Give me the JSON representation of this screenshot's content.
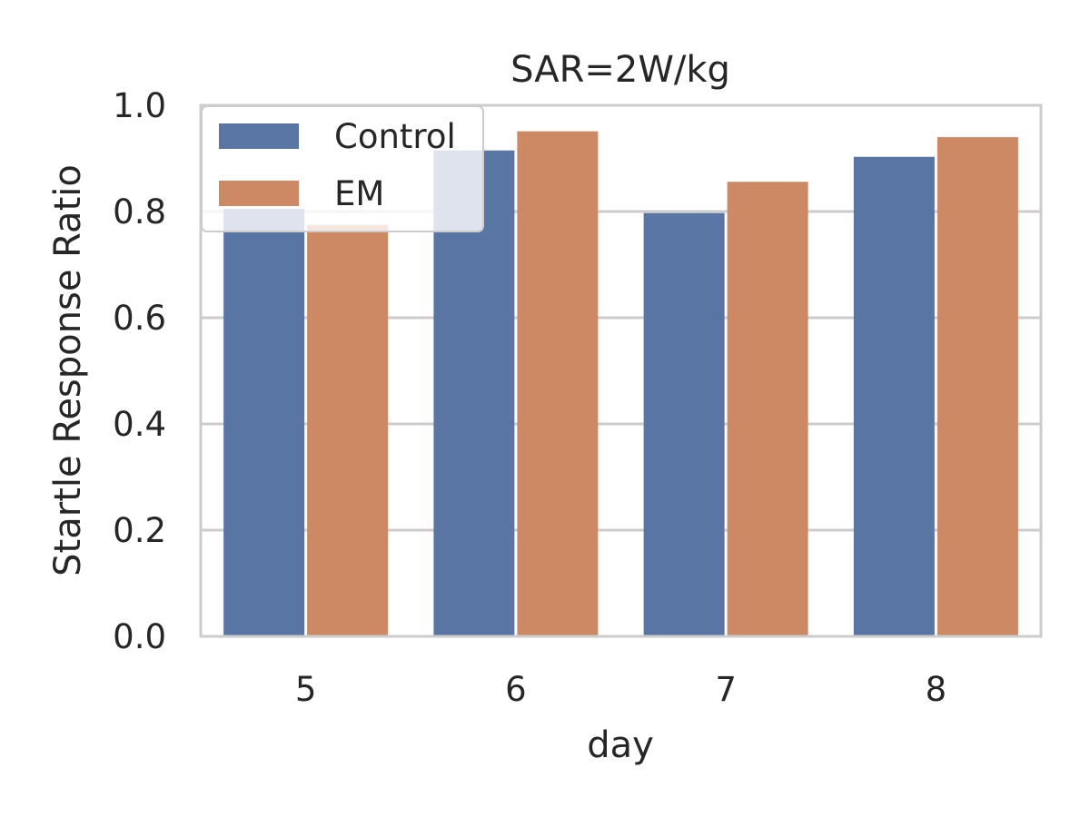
{
  "chart_data": {
    "type": "bar",
    "title": "SAR=2W/kg",
    "xlabel": "day",
    "ylabel": "Startle Response Ratio",
    "categories": [
      "5",
      "6",
      "7",
      "8"
    ],
    "series": [
      {
        "name": "Control",
        "values": [
          0.805,
          0.915,
          0.797,
          0.903
        ],
        "color": "#5975a4"
      },
      {
        "name": "EM",
        "values": [
          0.775,
          0.951,
          0.856,
          0.94
        ],
        "color": "#cc8963"
      }
    ],
    "ylim": [
      0,
      1.0
    ],
    "yticks": [
      0.0,
      0.2,
      0.4,
      0.6,
      0.8,
      1.0
    ],
    "ytick_labels": [
      "0.0",
      "0.2",
      "0.4",
      "0.6",
      "0.8",
      "1.0"
    ],
    "grid": true,
    "legend_position": "top-left",
    "colors": {
      "grid": "#cccccc",
      "spine": "#cccccc",
      "text": "#262626"
    }
  }
}
